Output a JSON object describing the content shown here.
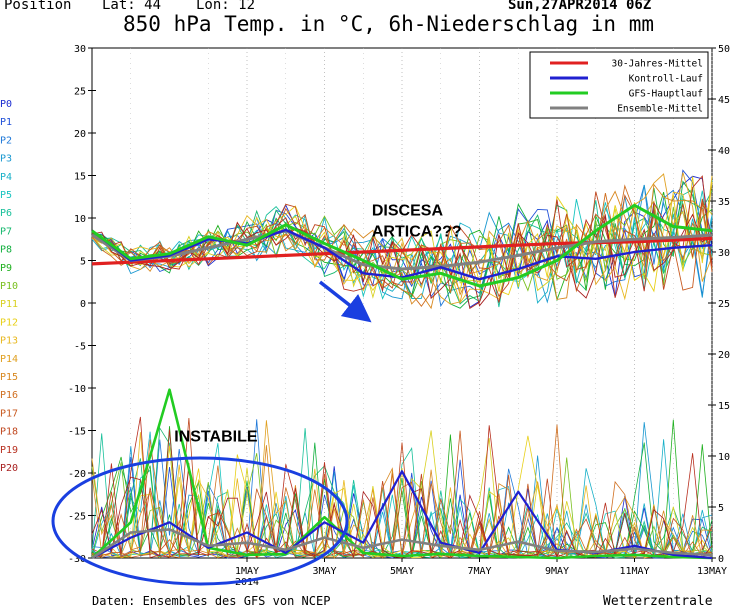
{
  "header": {
    "position": "Position",
    "lat": "Lat: 44",
    "lon": "Lon: 12",
    "title": "850 hPa Temp. in °C, 6h-Niederschlag in mm",
    "run": "Sun,27APR2014 06Z"
  },
  "footer": {
    "source": "Daten: Ensembles des GFS von NCEP",
    "brand": "Wetterzentrale"
  },
  "colors": {
    "climate": "#e02020",
    "control": "#2020d0",
    "gfs": "#22cc22",
    "mean": "#808080",
    "annotation_blue": "#1a3fe0"
  },
  "chart_data": {
    "type": "line",
    "left_axis": {
      "label": "°C",
      "range": [
        -30,
        30
      ],
      "ticks": [
        30,
        25,
        20,
        15,
        10,
        5,
        0,
        -5,
        -10,
        -15,
        -20,
        -25,
        -30
      ]
    },
    "right_axis": {
      "label": "mm",
      "range": [
        0,
        50
      ],
      "ticks": [
        50,
        45,
        40,
        35,
        30,
        25,
        20,
        15,
        10,
        5,
        0
      ]
    },
    "x_ticks": [
      {
        "label": "1MAY",
        "sub": "2014",
        "day": 4
      },
      {
        "label": "3MAY",
        "day": 6
      },
      {
        "label": "5MAY",
        "day": 8
      },
      {
        "label": "7MAY",
        "day": 10
      },
      {
        "label": "9MAY",
        "day": 12
      },
      {
        "label": "11MAY",
        "day": 14
      },
      {
        "label": "13MAY",
        "day": 16
      }
    ],
    "x_range_days": [
      0,
      16
    ],
    "legend": [
      {
        "name": "30-Jahres-Mittel",
        "color": "#e02020"
      },
      {
        "name": "Kontroll-Lauf",
        "color": "#2020d0"
      },
      {
        "name": "GFS-Hauptlauf",
        "color": "#22cc22"
      },
      {
        "name": "Ensemble-Mittel",
        "color": "#808080"
      }
    ],
    "members": [
      {
        "name": "P0",
        "color": "#1a2bd0"
      },
      {
        "name": "P1",
        "color": "#1f4fd8"
      },
      {
        "name": "P2",
        "color": "#1e78d8"
      },
      {
        "name": "P3",
        "color": "#1a98d0"
      },
      {
        "name": "P4",
        "color": "#18b0c8"
      },
      {
        "name": "P5",
        "color": "#19c4c0"
      },
      {
        "name": "P6",
        "color": "#18c09a"
      },
      {
        "name": "P7",
        "color": "#16b86e"
      },
      {
        "name": "P8",
        "color": "#14b040"
      },
      {
        "name": "P9",
        "color": "#20b020"
      },
      {
        "name": "P10",
        "color": "#7ac020"
      },
      {
        "name": "P11",
        "color": "#d8d020"
      },
      {
        "name": "P12",
        "color": "#e8d018"
      },
      {
        "name": "P13",
        "color": "#e8b820"
      },
      {
        "name": "P14",
        "color": "#e0a020"
      },
      {
        "name": "P15",
        "color": "#d88820"
      },
      {
        "name": "P16",
        "color": "#d06f20"
      },
      {
        "name": "P17",
        "color": "#c85a20"
      },
      {
        "name": "P18",
        "color": "#c04820"
      },
      {
        "name": "P19",
        "color": "#b83020"
      },
      {
        "name": "P20",
        "color": "#a82020"
      }
    ],
    "series": [
      {
        "name": "30-Jahres-Mittel",
        "axis": "temp",
        "values": [
          4.6,
          4.8,
          5.0,
          5.2,
          5.4,
          5.6,
          5.8,
          6.0,
          6.2,
          6.4,
          6.6,
          6.8,
          7.0,
          7.1,
          7.2,
          7.4,
          7.6
        ]
      },
      {
        "name": "Ensemble-Mittel",
        "axis": "temp",
        "values": [
          8.0,
          5.0,
          5.5,
          6.5,
          7.5,
          8.5,
          6.5,
          4.5,
          4.0,
          4.3,
          4.8,
          5.6,
          6.5,
          7.2,
          7.5,
          7.7,
          8.0
        ]
      },
      {
        "name": "Kontroll-Lauf",
        "axis": "temp",
        "values": [
          8.5,
          5.0,
          5.6,
          7.5,
          7.0,
          8.6,
          6.5,
          3.5,
          3.0,
          4.2,
          2.8,
          4.0,
          5.5,
          5.2,
          6.0,
          6.5,
          6.8
        ]
      },
      {
        "name": "GFS-Hauptlauf",
        "axis": "temp",
        "values": [
          8.5,
          5.2,
          5.8,
          7.8,
          6.8,
          9.2,
          7.0,
          5.0,
          2.8,
          3.5,
          2.0,
          3.0,
          5.0,
          8.5,
          11.5,
          9.0,
          8.5
        ]
      },
      {
        "name": "GFS-Hauptlauf Niederschlag",
        "axis": "precip",
        "values": [
          0.0,
          3.5,
          16.5,
          1.0,
          0.3,
          0.4,
          4.0,
          0.5,
          0.2,
          0.4,
          0.2,
          0.1,
          0.0,
          0.2,
          0.3,
          0.1,
          0.0
        ]
      },
      {
        "name": "Kontroll-Lauf Niederschlag",
        "axis": "precip",
        "values": [
          0.0,
          2.0,
          3.5,
          1.0,
          2.5,
          0.5,
          3.5,
          1.5,
          8.5,
          1.5,
          0.5,
          6.5,
          0.8,
          0.5,
          1.2,
          0.3,
          0.0
        ]
      },
      {
        "name": "Ensemble-Mittel Niederschlag",
        "axis": "precip",
        "values": [
          0.0,
          2.5,
          2.8,
          1.2,
          1.5,
          0.8,
          2.0,
          1.0,
          1.8,
          1.2,
          0.8,
          1.6,
          0.7,
          0.6,
          0.9,
          0.5,
          0.3
        ]
      }
    ],
    "annotations": [
      {
        "text": "DISCESA",
        "day": 7.3,
        "temp": 10.3
      },
      {
        "text": "ARTICA???",
        "day": 7.3,
        "temp": 7.8
      },
      {
        "text": "INSTABILE",
        "day": 2.2,
        "temp": -16.3
      }
    ]
  }
}
